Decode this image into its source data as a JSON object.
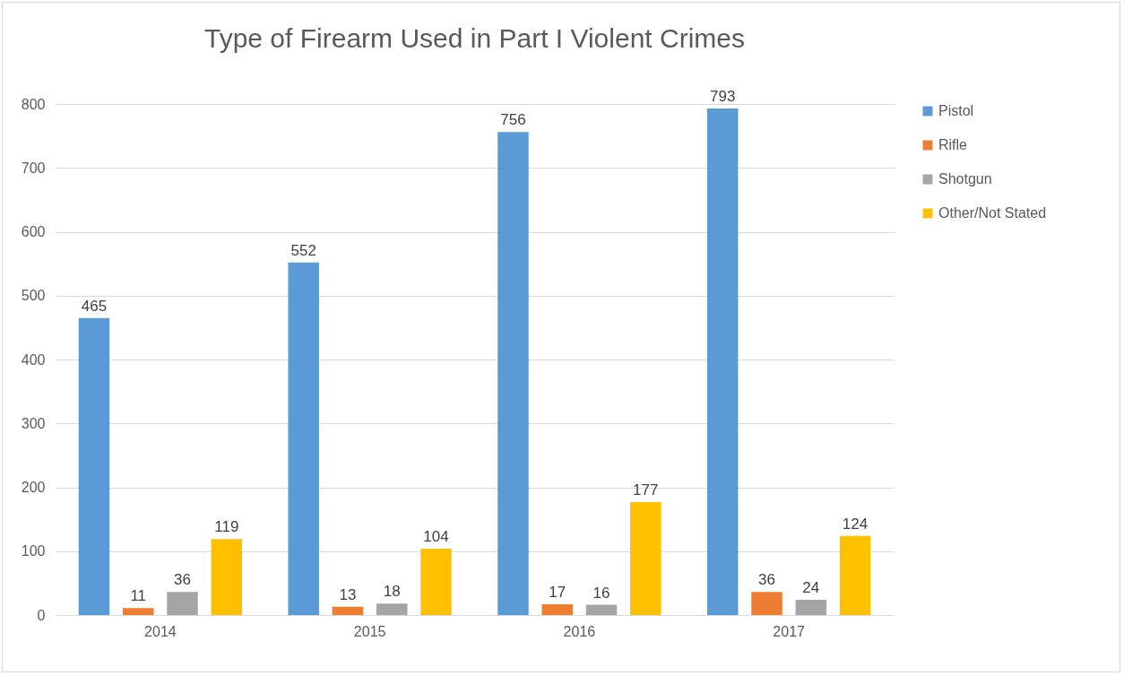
{
  "chart_data": {
    "type": "bar",
    "title": "Type of Firearm Used in Part I Violent Crimes",
    "categories": [
      "2014",
      "2015",
      "2016",
      "2017"
    ],
    "series": [
      {
        "name": "Pistol",
        "color": "#5b9bd5",
        "values": [
          465,
          552,
          756,
          793
        ]
      },
      {
        "name": "Rifle",
        "color": "#ed7d31",
        "values": [
          11,
          13,
          17,
          36
        ]
      },
      {
        "name": "Shotgun",
        "color": "#a5a5a5",
        "values": [
          36,
          18,
          16,
          24
        ]
      },
      {
        "name": "Other/Not Stated",
        "color": "#ffc000",
        "values": [
          119,
          104,
          177,
          124
        ]
      }
    ],
    "ylim": [
      0,
      800
    ],
    "yticks": [
      0,
      100,
      200,
      300,
      400,
      500,
      600,
      700,
      800
    ],
    "grid": "y",
    "legend": "right",
    "data_labels": true
  }
}
